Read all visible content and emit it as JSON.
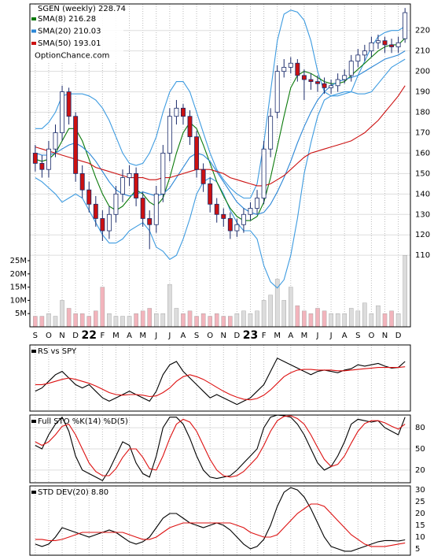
{
  "chart_data": [
    {
      "type": "candlestick",
      "title": "SGEN (weekly) 228.74",
      "watermark": "OptionChance.com",
      "x": [
        0,
        0.5,
        1,
        1.5,
        2,
        2.5,
        3,
        3.5,
        4,
        4.5,
        5,
        5.5,
        6,
        6.5,
        7,
        7.5,
        8,
        8.5,
        9,
        9.5,
        10,
        10.5,
        11,
        11.5,
        12,
        12.5,
        13,
        13.5,
        14,
        14.5,
        15,
        15.5,
        16,
        16.5,
        17,
        17.5,
        18,
        18.5,
        19,
        19.5,
        20,
        20.5,
        21,
        21.5,
        22,
        22.5,
        23,
        23.5,
        24,
        24.5,
        25,
        25.5,
        26,
        26.5,
        27,
        27.5
      ],
      "xlim": [
        -0.4,
        27.9
      ],
      "xticks": [
        {
          "value": 0,
          "label": "S"
        },
        {
          "value": 1,
          "label": "O"
        },
        {
          "value": 2,
          "label": "N"
        },
        {
          "value": 3,
          "label": "D"
        },
        {
          "value": 4,
          "label": "22"
        },
        {
          "value": 5,
          "label": "F"
        },
        {
          "value": 6,
          "label": "M"
        },
        {
          "value": 7,
          "label": "A"
        },
        {
          "value": 8,
          "label": "M"
        },
        {
          "value": 9,
          "label": "J"
        },
        {
          "value": 10,
          "label": "J"
        },
        {
          "value": 11,
          "label": "A"
        },
        {
          "value": 12,
          "label": "S"
        },
        {
          "value": 13,
          "label": "O"
        },
        {
          "value": 14,
          "label": "N"
        },
        {
          "value": 15,
          "label": "D"
        },
        {
          "value": 16,
          "label": "23"
        },
        {
          "value": 17,
          "label": "F"
        },
        {
          "value": 18,
          "label": "M"
        },
        {
          "value": 19,
          "label": "A"
        },
        {
          "value": 20,
          "label": "M"
        },
        {
          "value": 21,
          "label": "J"
        },
        {
          "value": 22,
          "label": "J"
        },
        {
          "value": 23,
          "label": "A"
        },
        {
          "value": 24,
          "label": "S"
        },
        {
          "value": 25,
          "label": "O"
        },
        {
          "value": 26,
          "label": "N"
        },
        {
          "value": 27,
          "label": "D"
        }
      ],
      "open": [
        160,
        155,
        152,
        162,
        170,
        190,
        178,
        150,
        142,
        135,
        128,
        122,
        130,
        140,
        148,
        150,
        138,
        128,
        125,
        140,
        160,
        178,
        182,
        178,
        168,
        152,
        145,
        135,
        130,
        128,
        122,
        125,
        130,
        133,
        138,
        162,
        180,
        200,
        202,
        204,
        198,
        196,
        195,
        194,
        192,
        193,
        196,
        198,
        205,
        208,
        210,
        214,
        215,
        213,
        212,
        216
      ],
      "high": [
        164,
        159,
        166,
        174,
        193,
        192,
        180,
        154,
        146,
        139,
        132,
        134,
        144,
        152,
        154,
        153,
        141,
        132,
        144,
        164,
        182,
        186,
        184,
        181,
        171,
        155,
        148,
        138,
        133,
        131,
        128,
        133,
        136,
        142,
        166,
        182,
        203,
        206,
        207,
        206,
        201,
        199,
        198,
        197,
        196,
        199,
        201,
        208,
        211,
        213,
        217,
        218,
        217,
        216,
        217,
        231
      ],
      "low": [
        151,
        148,
        148,
        158,
        166,
        174,
        146,
        138,
        131,
        124,
        117,
        118,
        126,
        136,
        144,
        134,
        124,
        113,
        121,
        136,
        156,
        174,
        174,
        164,
        148,
        141,
        131,
        126,
        124,
        118,
        119,
        121,
        127,
        130,
        135,
        158,
        177,
        197,
        199,
        195,
        186,
        191,
        190,
        189,
        189,
        190,
        194,
        195,
        202,
        205,
        207,
        211,
        209,
        209,
        209,
        214
      ],
      "close": [
        155,
        152,
        162,
        170,
        190,
        178,
        150,
        142,
        135,
        128,
        122,
        130,
        140,
        148,
        150,
        138,
        128,
        125,
        140,
        160,
        178,
        182,
        178,
        168,
        152,
        145,
        135,
        130,
        128,
        122,
        125,
        130,
        133,
        138,
        162,
        178,
        200,
        202,
        204,
        198,
        196,
        195,
        194,
        192,
        193,
        196,
        198,
        205,
        208,
        210,
        214,
        215,
        213,
        212,
        214,
        228.74
      ],
      "up_color": "#ffffff",
      "down_color": "#cc1111",
      "candle_outline": "#1a2a6a",
      "ylim": [
        75,
        233
      ],
      "yticks": [
        110,
        120,
        130,
        140,
        150,
        160,
        170,
        180,
        190,
        200,
        210,
        220
      ],
      "grid": true,
      "series": [
        {
          "color": "#3d9be0",
          "values": [
            172,
            172,
            175,
            180,
            188,
            189,
            189,
            189,
            188,
            186,
            182,
            176,
            168,
            160,
            155,
            154,
            155,
            160,
            168,
            180,
            190,
            195,
            195,
            190,
            180,
            170,
            160,
            152,
            147,
            143,
            140,
            138,
            138,
            145,
            165,
            190,
            215,
            228,
            230,
            229,
            225,
            215,
            200,
            190,
            188,
            188,
            189,
            190,
            198,
            205,
            212,
            217,
            219,
            220,
            220,
            222
          ]
        },
        {
          "color": "#3d9be0",
          "values": [
            148,
            146,
            143,
            140,
            136,
            138,
            140,
            138,
            132,
            126,
            120,
            116,
            116,
            118,
            122,
            124,
            126,
            122,
            114,
            112,
            108,
            110,
            118,
            128,
            140,
            146,
            148,
            146,
            140,
            132,
            126,
            122,
            122,
            118,
            105,
            97,
            94,
            98,
            110,
            128,
            150,
            165,
            178,
            186,
            188,
            189,
            190,
            190,
            189,
            189,
            190,
            194,
            198,
            202,
            204,
            206
          ]
        },
        {
          "name": "SMA(8) 216.28",
          "color": "#0a7a0a",
          "values": [
            157,
            156,
            157,
            160,
            166,
            172,
            172,
            166,
            157,
            148,
            140,
            134,
            132,
            134,
            138,
            142,
            140,
            136,
            134,
            138,
            148,
            160,
            170,
            175,
            172,
            164,
            155,
            146,
            139,
            133,
            129,
            127,
            127,
            129,
            136,
            148,
            163,
            178,
            192,
            198,
            200,
            199,
            197,
            195,
            194,
            194,
            195,
            198,
            201,
            204,
            207,
            210,
            212,
            213,
            213,
            216.28
          ]
        },
        {
          "name": "SMA(20) 210.03",
          "color": "#2a86d6",
          "values": [
            160,
            159,
            159,
            160,
            162,
            164,
            165,
            163,
            160,
            156,
            151,
            146,
            142,
            140,
            139,
            140,
            141,
            140,
            139,
            140,
            143,
            148,
            153,
            158,
            160,
            159,
            156,
            151,
            146,
            141,
            136,
            133,
            131,
            130,
            131,
            135,
            141,
            148,
            156,
            165,
            173,
            180,
            186,
            190,
            193,
            195,
            196,
            197,
            198,
            200,
            202,
            204,
            206,
            207,
            208,
            210.03
          ]
        },
        {
          "name": "SMA(50) 193.01",
          "color": "#cc1111",
          "values": [
            163,
            162,
            161,
            160,
            159,
            158,
            157,
            156,
            155,
            153,
            152,
            151,
            150,
            149,
            148,
            148,
            148,
            147,
            147,
            148,
            148,
            149,
            150,
            151,
            152,
            152,
            152,
            151,
            150,
            148,
            147,
            146,
            145,
            144,
            144,
            145,
            147,
            149,
            152,
            155,
            158,
            160,
            161,
            162,
            163,
            164,
            165,
            166,
            168,
            170,
            173,
            176,
            180,
            184,
            188,
            193.01
          ]
        }
      ],
      "volume": [
        4000000,
        4000000,
        5000000,
        4000000,
        10000000,
        7000000,
        5000000,
        5000000,
        4000000,
        6000000,
        15000000,
        5000000,
        4000000,
        4000000,
        4000000,
        5000000,
        6000000,
        7000000,
        5000000,
        5000000,
        16000000,
        7000000,
        5000000,
        6000000,
        4000000,
        5000000,
        4000000,
        5000000,
        4000000,
        4000000,
        5000000,
        6000000,
        5000000,
        6000000,
        10000000,
        12000000,
        18000000,
        10000000,
        15000000,
        8000000,
        6000000,
        5000000,
        7000000,
        6000000,
        5000000,
        5000000,
        5000000,
        7000000,
        6000000,
        9000000,
        5000000,
        8000000,
        5000000,
        6000000,
        5000000,
        27000000
      ],
      "volume_up_color": "#dcdcdc",
      "volume_down_color": "#f2b4bc",
      "y2lim": [
        0,
        122000000
      ],
      "y2ticks": [
        {
          "value": 5000000,
          "label": "5M"
        },
        {
          "value": 10000000,
          "label": "10M"
        },
        {
          "value": 15000000,
          "label": "15M"
        },
        {
          "value": 20000000,
          "label": "20M"
        },
        {
          "value": 25000000,
          "label": "25M"
        }
      ]
    },
    {
      "type": "line",
      "title": "RS vs SPY",
      "ylim": [
        0,
        100
      ],
      "series": [
        {
          "color": "#000000",
          "values": [
            30,
            35,
            45,
            55,
            60,
            50,
            40,
            35,
            40,
            30,
            20,
            15,
            20,
            25,
            30,
            25,
            20,
            15,
            30,
            55,
            70,
            75,
            60,
            50,
            40,
            30,
            20,
            25,
            20,
            15,
            10,
            15,
            20,
            30,
            40,
            60,
            80,
            75,
            70,
            65,
            60,
            55,
            60,
            62,
            60,
            58,
            62,
            64,
            70,
            68,
            70,
            72,
            68,
            65,
            66,
            75
          ]
        },
        {
          "color": "#dd1111",
          "values": [
            40,
            40,
            42,
            45,
            48,
            50,
            48,
            45,
            42,
            38,
            33,
            28,
            25,
            24,
            25,
            25,
            24,
            22,
            23,
            28,
            35,
            45,
            52,
            55,
            52,
            48,
            42,
            36,
            30,
            25,
            21,
            18,
            17,
            19,
            24,
            32,
            42,
            52,
            58,
            62,
            63,
            63,
            62,
            62,
            62,
            61,
            61,
            62,
            63,
            64,
            65,
            66,
            66,
            66,
            66,
            67
          ]
        }
      ]
    },
    {
      "type": "line",
      "title": "Full STO %K(14) %D(5)",
      "ylim": [
        2,
        98
      ],
      "yticks": [
        20,
        50,
        80
      ],
      "grid": true,
      "series": [
        {
          "color": "#000000",
          "values": [
            55,
            50,
            70,
            85,
            95,
            75,
            40,
            20,
            15,
            10,
            5,
            20,
            40,
            60,
            55,
            30,
            15,
            10,
            40,
            80,
            95,
            95,
            85,
            65,
            40,
            20,
            10,
            8,
            10,
            12,
            20,
            30,
            40,
            50,
            80,
            95,
            98,
            97,
            95,
            85,
            70,
            50,
            30,
            20,
            25,
            40,
            60,
            85,
            92,
            90,
            88,
            90,
            80,
            75,
            70,
            95
          ]
        },
        {
          "color": "#dd1111",
          "values": [
            60,
            55,
            60,
            70,
            82,
            85,
            70,
            50,
            30,
            18,
            12,
            12,
            22,
            38,
            50,
            50,
            38,
            22,
            20,
            40,
            65,
            85,
            92,
            88,
            75,
            55,
            35,
            20,
            12,
            10,
            12,
            18,
            28,
            38,
            55,
            75,
            90,
            96,
            97,
            93,
            85,
            70,
            52,
            35,
            25,
            28,
            40,
            58,
            75,
            86,
            90,
            90,
            87,
            82,
            78,
            85
          ]
        }
      ]
    },
    {
      "type": "line",
      "title": "STD DEV(20) 8.80",
      "ylim": [
        2.3,
        31.7
      ],
      "yticks": [
        5,
        10,
        15,
        20,
        25,
        30
      ],
      "grid": false,
      "series": [
        {
          "color": "#000000",
          "values": [
            7,
            6,
            7,
            10,
            14,
            13,
            12,
            11,
            10,
            11,
            12,
            13,
            12,
            10,
            8,
            7,
            8,
            10,
            14,
            18,
            20,
            20,
            18,
            16,
            15,
            14,
            15,
            16,
            15,
            13,
            10,
            7,
            5,
            6,
            9,
            15,
            23,
            29,
            31,
            30,
            27,
            22,
            16,
            10,
            6,
            5,
            4,
            4,
            5,
            6,
            7,
            8,
            8.5,
            8.5,
            8.3,
            8.8
          ]
        },
        {
          "color": "#dd1111",
          "values": [
            9,
            9,
            8.5,
            8.5,
            9,
            10,
            11,
            12,
            12,
            12,
            12,
            12,
            12,
            12,
            11,
            10,
            9,
            9,
            10,
            12,
            14,
            15,
            16,
            16,
            16,
            16,
            16,
            16,
            16,
            16,
            15,
            14,
            12,
            11,
            10,
            10,
            11,
            14,
            17,
            20,
            22,
            24,
            24,
            23,
            20,
            17,
            14,
            11,
            9,
            7,
            6,
            6,
            6,
            6.5,
            7,
            7.5
          ]
        }
      ]
    }
  ]
}
